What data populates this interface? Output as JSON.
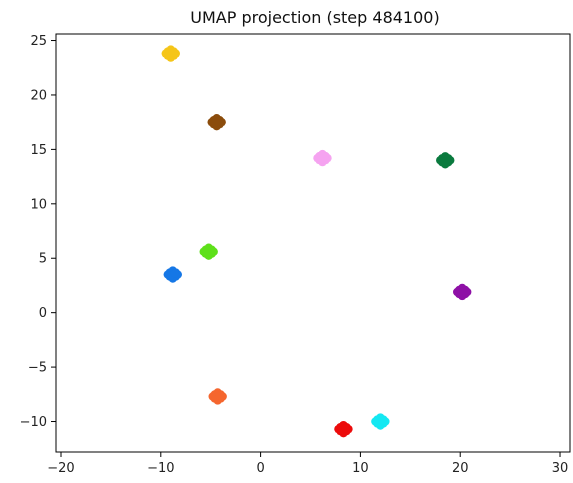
{
  "chart_data": {
    "type": "scatter",
    "title": "UMAP projection (step 484100)",
    "xlabel": "",
    "ylabel": "",
    "xlim": [
      -20.5,
      31
    ],
    "ylim": [
      -12.8,
      25.6
    ],
    "x_ticks": [
      -20,
      -10,
      0,
      10,
      20,
      30
    ],
    "y_ticks": [
      -10,
      -5,
      0,
      5,
      10,
      15,
      20,
      25
    ],
    "x_tick_labels": [
      "−20",
      "−10",
      "0",
      "10",
      "20",
      "30"
    ],
    "y_tick_labels": [
      "−10",
      "−5",
      "0",
      "5",
      "10",
      "15",
      "20",
      "25"
    ],
    "grid": false,
    "legend": "none",
    "clusters": [
      {
        "x": -9.0,
        "y": 23.8,
        "color": "#f5c518"
      },
      {
        "x": -4.4,
        "y": 17.5,
        "color": "#8b4c0c"
      },
      {
        "x": 6.2,
        "y": 14.2,
        "color": "#f5a3f0"
      },
      {
        "x": 18.5,
        "y": 14.0,
        "color": "#0a7a3e"
      },
      {
        "x": -5.2,
        "y": 5.6,
        "color": "#5ee01a"
      },
      {
        "x": -8.8,
        "y": 3.5,
        "color": "#1577e6"
      },
      {
        "x": 20.2,
        "y": 1.9,
        "color": "#8e10a6"
      },
      {
        "x": -4.3,
        "y": -7.7,
        "color": "#f5662e"
      },
      {
        "x": 8.3,
        "y": -10.7,
        "color": "#ec0b0b"
      },
      {
        "x": 12.0,
        "y": -10.0,
        "color": "#14e8f2"
      }
    ]
  }
}
